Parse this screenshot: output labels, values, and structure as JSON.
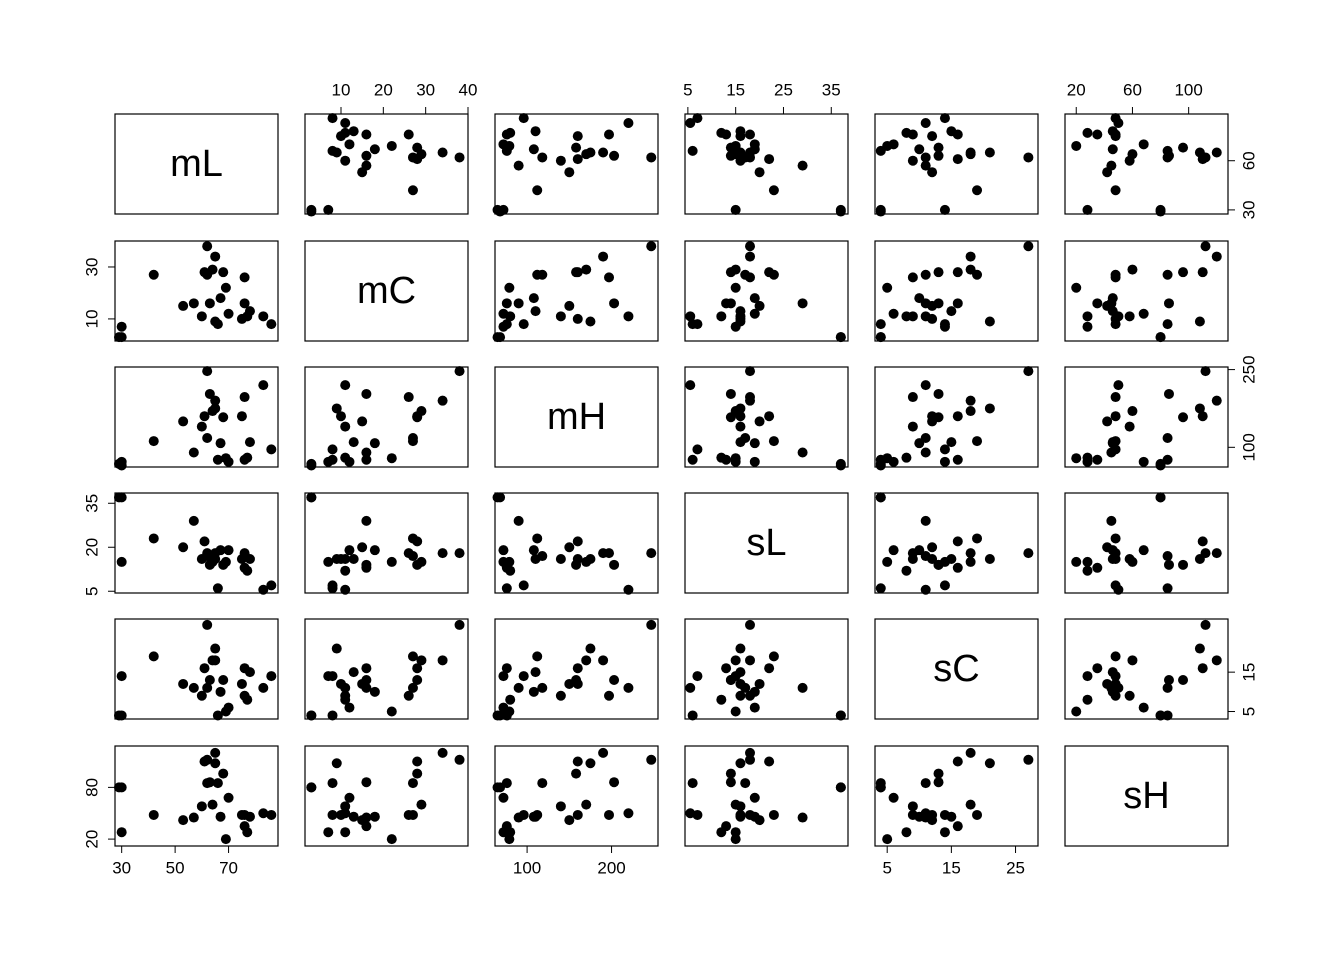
{
  "chart_data": {
    "type": "scatter-matrix",
    "variables": [
      {
        "name": "mL",
        "lim": [
          27.5,
          88.5
        ],
        "xticks": [
          30,
          50,
          70
        ],
        "yticks": [
          30,
          60
        ],
        "values": [
          29,
          30,
          30,
          42,
          53,
          57,
          60,
          61,
          62,
          62,
          63,
          64,
          65,
          65,
          66,
          67,
          68,
          69,
          70,
          75,
          76,
          76,
          77,
          78,
          83,
          86
        ]
      },
      {
        "name": "mC",
        "lim": [
          1.5,
          40
        ],
        "xticks": [
          10,
          20,
          30,
          40
        ],
        "yticks": [
          10,
          30
        ],
        "values": [
          3,
          7,
          3,
          27,
          15,
          16,
          11,
          28,
          38,
          27,
          16,
          29,
          9,
          34,
          8,
          18,
          28,
          22,
          12,
          10,
          26,
          16,
          11,
          13,
          11,
          8
        ]
      },
      {
        "name": "mH",
        "lim": [
          62,
          255
        ],
        "xticks": [
          100,
          200
        ],
        "yticks": [
          100,
          250
        ],
        "values": [
          68,
          72,
          65,
          112,
          150,
          90,
          140,
          160,
          247,
          118,
          203,
          170,
          175,
          190,
          76,
          108,
          158,
          79,
          72,
          160,
          197,
          76,
          80,
          110,
          220,
          96
        ]
      },
      {
        "name": "sL",
        "lim": [
          4.4,
          38.5
        ],
        "xticks": [
          5,
          15,
          25,
          35
        ],
        "yticks": [
          5,
          20,
          35
        ],
        "values": [
          37,
          15,
          37,
          23,
          20,
          29,
          16,
          22,
          18,
          17,
          14,
          15,
          16,
          18,
          6,
          19,
          14,
          15,
          19,
          16,
          18,
          13,
          12,
          16,
          5.5,
          7
        ]
      },
      {
        "name": "sC",
        "lim": [
          3.1,
          28.5
        ],
        "xticks": [
          5,
          15,
          25
        ],
        "yticks": [
          5,
          15
        ],
        "values": [
          4,
          14,
          4,
          19,
          12,
          11,
          9,
          16,
          27,
          11,
          13,
          18,
          21,
          18,
          4,
          10,
          13,
          5,
          6,
          12,
          9,
          16,
          8,
          15,
          11,
          14
        ]
      },
      {
        "name": "sH",
        "lim": [
          12,
          128
        ],
        "xticks": [
          20,
          60,
          100
        ],
        "yticks": [
          20,
          80
        ],
        "values": [
          80,
          28,
          80,
          48,
          42,
          45,
          58,
          110,
          112,
          85,
          86,
          60,
          108,
          120,
          85,
          46,
          96,
          20,
          68,
          48,
          48,
          35,
          28,
          46,
          50,
          48
        ]
      }
    ]
  }
}
